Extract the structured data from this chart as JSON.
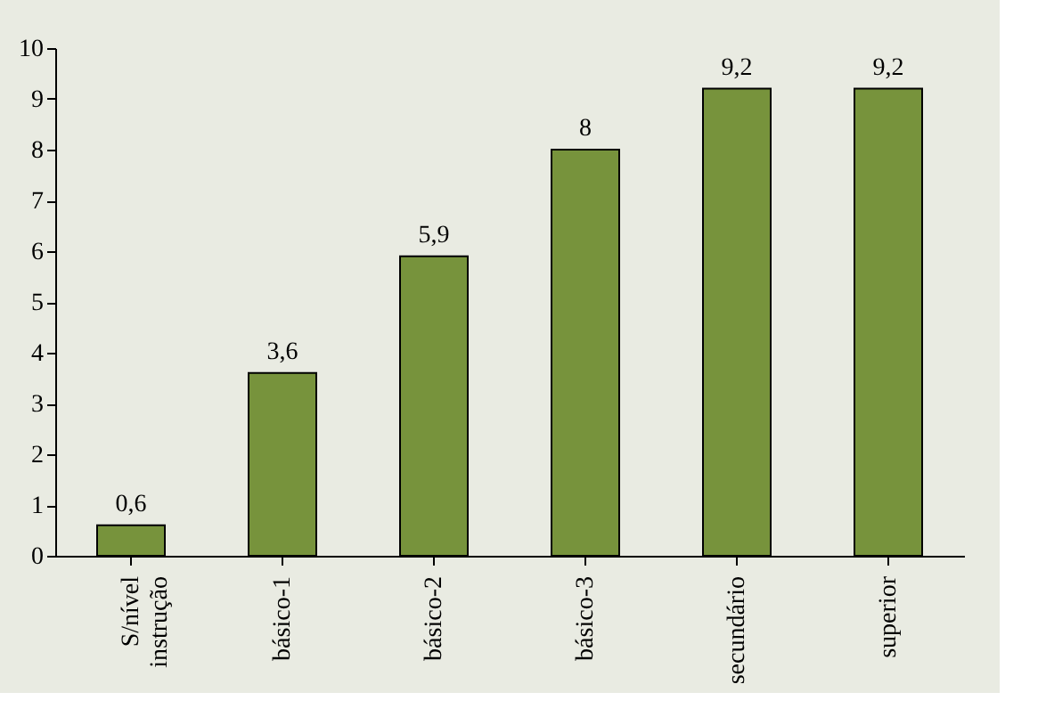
{
  "chart_data": {
    "type": "bar",
    "categories": [
      "S/nível instrução",
      "básico-1",
      "básico-2",
      "básico-3",
      "secundário",
      "superior"
    ],
    "values": [
      0.6,
      3.6,
      5.9,
      8,
      9.2,
      9.2
    ],
    "value_labels": [
      "0,6",
      "3,6",
      "5,9",
      "8",
      "9,2",
      "9,2"
    ],
    "color": "#77933c",
    "ylim": [
      0,
      10
    ],
    "yticks": [
      0,
      1,
      2,
      3,
      4,
      5,
      6,
      7,
      8,
      9,
      10
    ],
    "grid": false
  }
}
